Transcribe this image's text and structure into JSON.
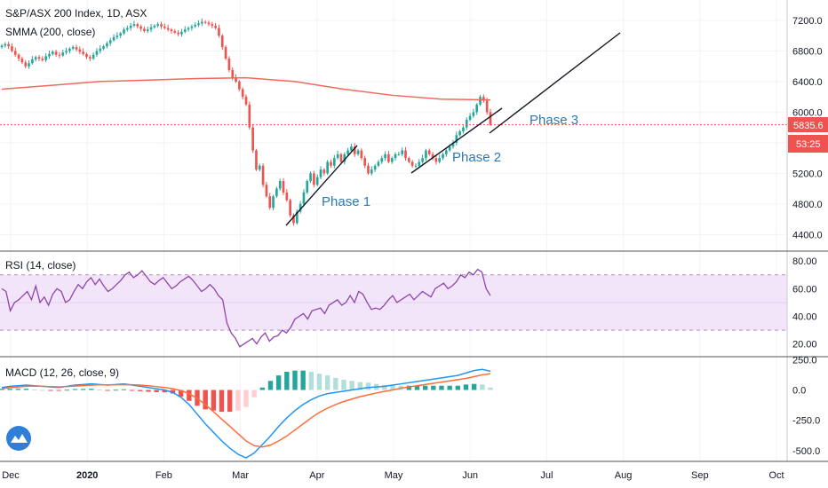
{
  "header": {
    "symbol_title": "S&P/ASX 200 Index, 1D, ASX",
    "smma_label": "SMMA (200, close)",
    "rsi_label": "RSI (14, close)",
    "macd_label": "MACD (12, 26, close, 9)"
  },
  "price_badges": {
    "last_price": "5835.6",
    "countdown": "53:25"
  },
  "colors": {
    "up": "#26a69a",
    "down": "#ef5350",
    "smma": "#ef6a5a",
    "rsi_line": "#8e44ad",
    "rsi_band": "#f3e5f9",
    "macd_line": "#2196f3",
    "signal_line": "#ff6d3a",
    "trendline": "#131722",
    "phase_text": "#2a7ab8",
    "last_price_line": "#ef5350"
  },
  "logo": {
    "icon": "tradingview-cloud-icon"
  },
  "chart_data": [
    {
      "name": "price",
      "type": "candlestick",
      "title": "S&P/ASX 200 Index, 1D, ASX",
      "y_ticks": [
        "7200.0",
        "6800.0",
        "6400.0",
        "6000.0",
        "5600.0",
        "5200.0",
        "4800.0",
        "4400.0"
      ],
      "ylim": [
        4300,
        7350
      ],
      "x_ticks": [
        "Dec",
        "2020",
        "Feb",
        "Mar",
        "Apr",
        "May",
        "Jun",
        "Jul",
        "Aug",
        "Sep",
        "Oct"
      ],
      "closes": [
        6870,
        6890,
        6860,
        6800,
        6750,
        6700,
        6650,
        6600,
        6640,
        6690,
        6720,
        6700,
        6680,
        6730,
        6760,
        6790,
        6750,
        6740,
        6780,
        6800,
        6830,
        6850,
        6820,
        6790,
        6760,
        6720,
        6700,
        6750,
        6800,
        6830,
        6860,
        6900,
        6940,
        6980,
        7000,
        7030,
        7080,
        7100,
        7130,
        7150,
        7120,
        7090,
        7060,
        7080,
        7110,
        7130,
        7150,
        7120,
        7100,
        7080,
        7060,
        7040,
        7020,
        7050,
        7080,
        7100,
        7120,
        7140,
        7160,
        7180,
        7170,
        7150,
        7130,
        7100,
        7000,
        6850,
        6700,
        6550,
        6450,
        6400,
        6300,
        6200,
        6100,
        5800,
        5500,
        5250,
        5300,
        5050,
        4900,
        4750,
        4900,
        5000,
        5100,
        4950,
        4850,
        4650,
        4550,
        4700,
        4800,
        4950,
        5100,
        5200,
        5050,
        5150,
        5250,
        5200,
        5350,
        5300,
        5400,
        5450,
        5350,
        5450,
        5500,
        5550,
        5450,
        5500,
        5400,
        5300,
        5200,
        5250,
        5300,
        5350,
        5400,
        5450,
        5350,
        5400,
        5450,
        5450,
        5500,
        5400,
        5350,
        5300,
        5300,
        5350,
        5400,
        5500,
        5450,
        5400,
        5350,
        5400,
        5450,
        5500,
        5550,
        5600,
        5700,
        5750,
        5800,
        5900,
        5950,
        6000,
        6100,
        6200,
        6150,
        6000,
        5836
      ],
      "smma": [
        6300,
        6350,
        6400,
        6420,
        6440,
        6450,
        6400,
        6300,
        6220,
        6170,
        6160
      ],
      "annotations": [
        "Phase 1",
        "Phase 2",
        "Phase 3"
      ],
      "last_price": 5835.6
    },
    {
      "name": "rsi",
      "type": "line",
      "title": "RSI (14, close)",
      "y_ticks": [
        "80.00",
        "60.00",
        "40.00",
        "20.00"
      ],
      "ylim": [
        14,
        84
      ],
      "band": [
        30,
        70
      ],
      "values": [
        60,
        58,
        44,
        50,
        52,
        55,
        58,
        52,
        62,
        50,
        54,
        48,
        56,
        60,
        58,
        50,
        52,
        58,
        63,
        60,
        65,
        68,
        63,
        67,
        62,
        58,
        60,
        63,
        66,
        70,
        72,
        68,
        70,
        73,
        69,
        65,
        63,
        66,
        68,
        64,
        60,
        62,
        65,
        67,
        69,
        66,
        62,
        58,
        60,
        63,
        60,
        55,
        52,
        35,
        28,
        24,
        18,
        20,
        22,
        24,
        20,
        25,
        28,
        22,
        25,
        26,
        30,
        28,
        32,
        38,
        40,
        42,
        38,
        44,
        45,
        46,
        42,
        48,
        50,
        52,
        48,
        50,
        55,
        50,
        58,
        56,
        50,
        45,
        46,
        45,
        48,
        52,
        55,
        50,
        52,
        54,
        56,
        52,
        55,
        58,
        56,
        54,
        60,
        62,
        64,
        60,
        62,
        65,
        70,
        68,
        72,
        70,
        74,
        72,
        60,
        55
      ],
      "midline": 50
    },
    {
      "name": "macd",
      "type": "line+histogram",
      "title": "MACD (12, 26, close, 9)",
      "y_ticks": [
        "250.0",
        "0.0",
        "-250.0",
        "-500.0"
      ],
      "ylim": [
        -560,
        260
      ],
      "macd": [
        20,
        30,
        35,
        40,
        35,
        30,
        25,
        20,
        30,
        40,
        45,
        50,
        45,
        40,
        45,
        50,
        40,
        30,
        20,
        10,
        0,
        -20,
        -60,
        -120,
        -200,
        -280,
        -350,
        -420,
        -480,
        -530,
        -560,
        -520,
        -450,
        -380,
        -300,
        -230,
        -170,
        -120,
        -80,
        -50,
        -30,
        -20,
        -10,
        0,
        10,
        20,
        25,
        30,
        40,
        50,
        60,
        70,
        80,
        90,
        100,
        110,
        120,
        140,
        160,
        170,
        155
      ],
      "signal": [
        10,
        20,
        25,
        30,
        32,
        30,
        28,
        26,
        28,
        32,
        36,
        40,
        42,
        42,
        43,
        44,
        43,
        40,
        35,
        28,
        20,
        10,
        -5,
        -30,
        -70,
        -120,
        -180,
        -240,
        -300,
        -360,
        -420,
        -460,
        -470,
        -455,
        -420,
        -380,
        -330,
        -280,
        -230,
        -185,
        -150,
        -120,
        -95,
        -75,
        -55,
        -40,
        -25,
        -12,
        0,
        15,
        25,
        35,
        45,
        55,
        65,
        75,
        85,
        95,
        110,
        125,
        135
      ],
      "histogram": [
        10,
        10,
        10,
        10,
        3,
        0,
        -3,
        -6,
        2,
        8,
        9,
        10,
        3,
        -2,
        2,
        6,
        -3,
        -10,
        -15,
        -18,
        -20,
        -30,
        -55,
        -90,
        -130,
        -160,
        -170,
        -180,
        -180,
        -170,
        -140,
        -60,
        20,
        75,
        120,
        150,
        160,
        160,
        150,
        135,
        120,
        100,
        85,
        75,
        65,
        60,
        50,
        42,
        40,
        35,
        35,
        35,
        35,
        35,
        35,
        35,
        35,
        45,
        50,
        45,
        20
      ]
    }
  ]
}
